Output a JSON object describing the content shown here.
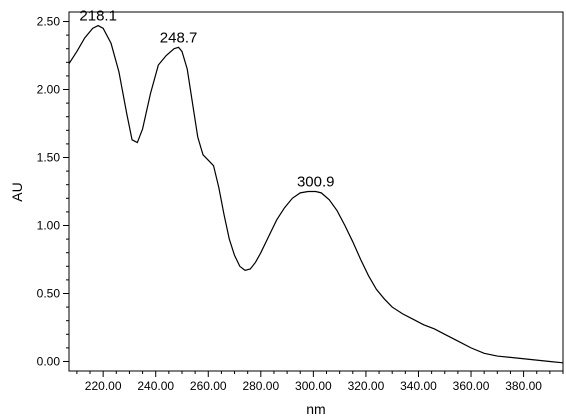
{
  "chart_data": {
    "type": "line",
    "title": "",
    "xlabel": "nm",
    "ylabel": "AU",
    "xlim": [
      207,
      395
    ],
    "ylim": [
      -0.07,
      2.57
    ],
    "grid": false,
    "legend": "none",
    "line_color": "#000000",
    "x_ticks": [
      {
        "value": 220,
        "label": "220.00"
      },
      {
        "value": 240,
        "label": "240.00"
      },
      {
        "value": 260,
        "label": "260.00"
      },
      {
        "value": 280,
        "label": "280.00"
      },
      {
        "value": 300,
        "label": "300.00"
      },
      {
        "value": 320,
        "label": "320.00"
      },
      {
        "value": 340,
        "label": "340.00"
      },
      {
        "value": 360,
        "label": "360.00"
      },
      {
        "value": 380,
        "label": "380.00"
      }
    ],
    "y_ticks": [
      {
        "value": 0.0,
        "label": "0.00"
      },
      {
        "value": 0.5,
        "label": "0.50"
      },
      {
        "value": 1.0,
        "label": "1.00"
      },
      {
        "value": 1.5,
        "label": "1.50"
      },
      {
        "value": 2.0,
        "label": "2.00"
      },
      {
        "value": 2.5,
        "label": "2.50"
      }
    ],
    "annotations": [
      {
        "text": "218.1",
        "x": 218.1,
        "y": 2.47
      },
      {
        "text": "248.7",
        "x": 248.7,
        "y": 2.31
      },
      {
        "text": "300.9",
        "x": 300.9,
        "y": 1.25
      }
    ],
    "series": [
      {
        "x": [
          207,
          210,
          213,
          216,
          218.1,
          220,
          223,
          226,
          229,
          231,
          233,
          235,
          238,
          241,
          244,
          247,
          248.7,
          250,
          252,
          254,
          256,
          258,
          260,
          262,
          264,
          266,
          268,
          270,
          272,
          274,
          276,
          278,
          280,
          283,
          286,
          289,
          292,
          295,
          298,
          300.9,
          303,
          306,
          309,
          312,
          315,
          318,
          321,
          324,
          327,
          330,
          334,
          338,
          342,
          346,
          350,
          355,
          360,
          365,
          370,
          375,
          380,
          385,
          390,
          395
        ],
        "y": [
          2.19,
          2.28,
          2.38,
          2.45,
          2.47,
          2.45,
          2.34,
          2.13,
          1.82,
          1.63,
          1.61,
          1.71,
          1.97,
          2.18,
          2.25,
          2.3,
          2.31,
          2.28,
          2.15,
          1.9,
          1.65,
          1.52,
          1.48,
          1.44,
          1.28,
          1.08,
          0.9,
          0.78,
          0.7,
          0.67,
          0.68,
          0.73,
          0.8,
          0.92,
          1.04,
          1.13,
          1.2,
          1.24,
          1.25,
          1.25,
          1.24,
          1.19,
          1.11,
          1.0,
          0.88,
          0.75,
          0.63,
          0.53,
          0.46,
          0.4,
          0.35,
          0.31,
          0.27,
          0.24,
          0.2,
          0.15,
          0.1,
          0.06,
          0.04,
          0.03,
          0.02,
          0.01,
          0.0,
          -0.01
        ]
      }
    ]
  }
}
